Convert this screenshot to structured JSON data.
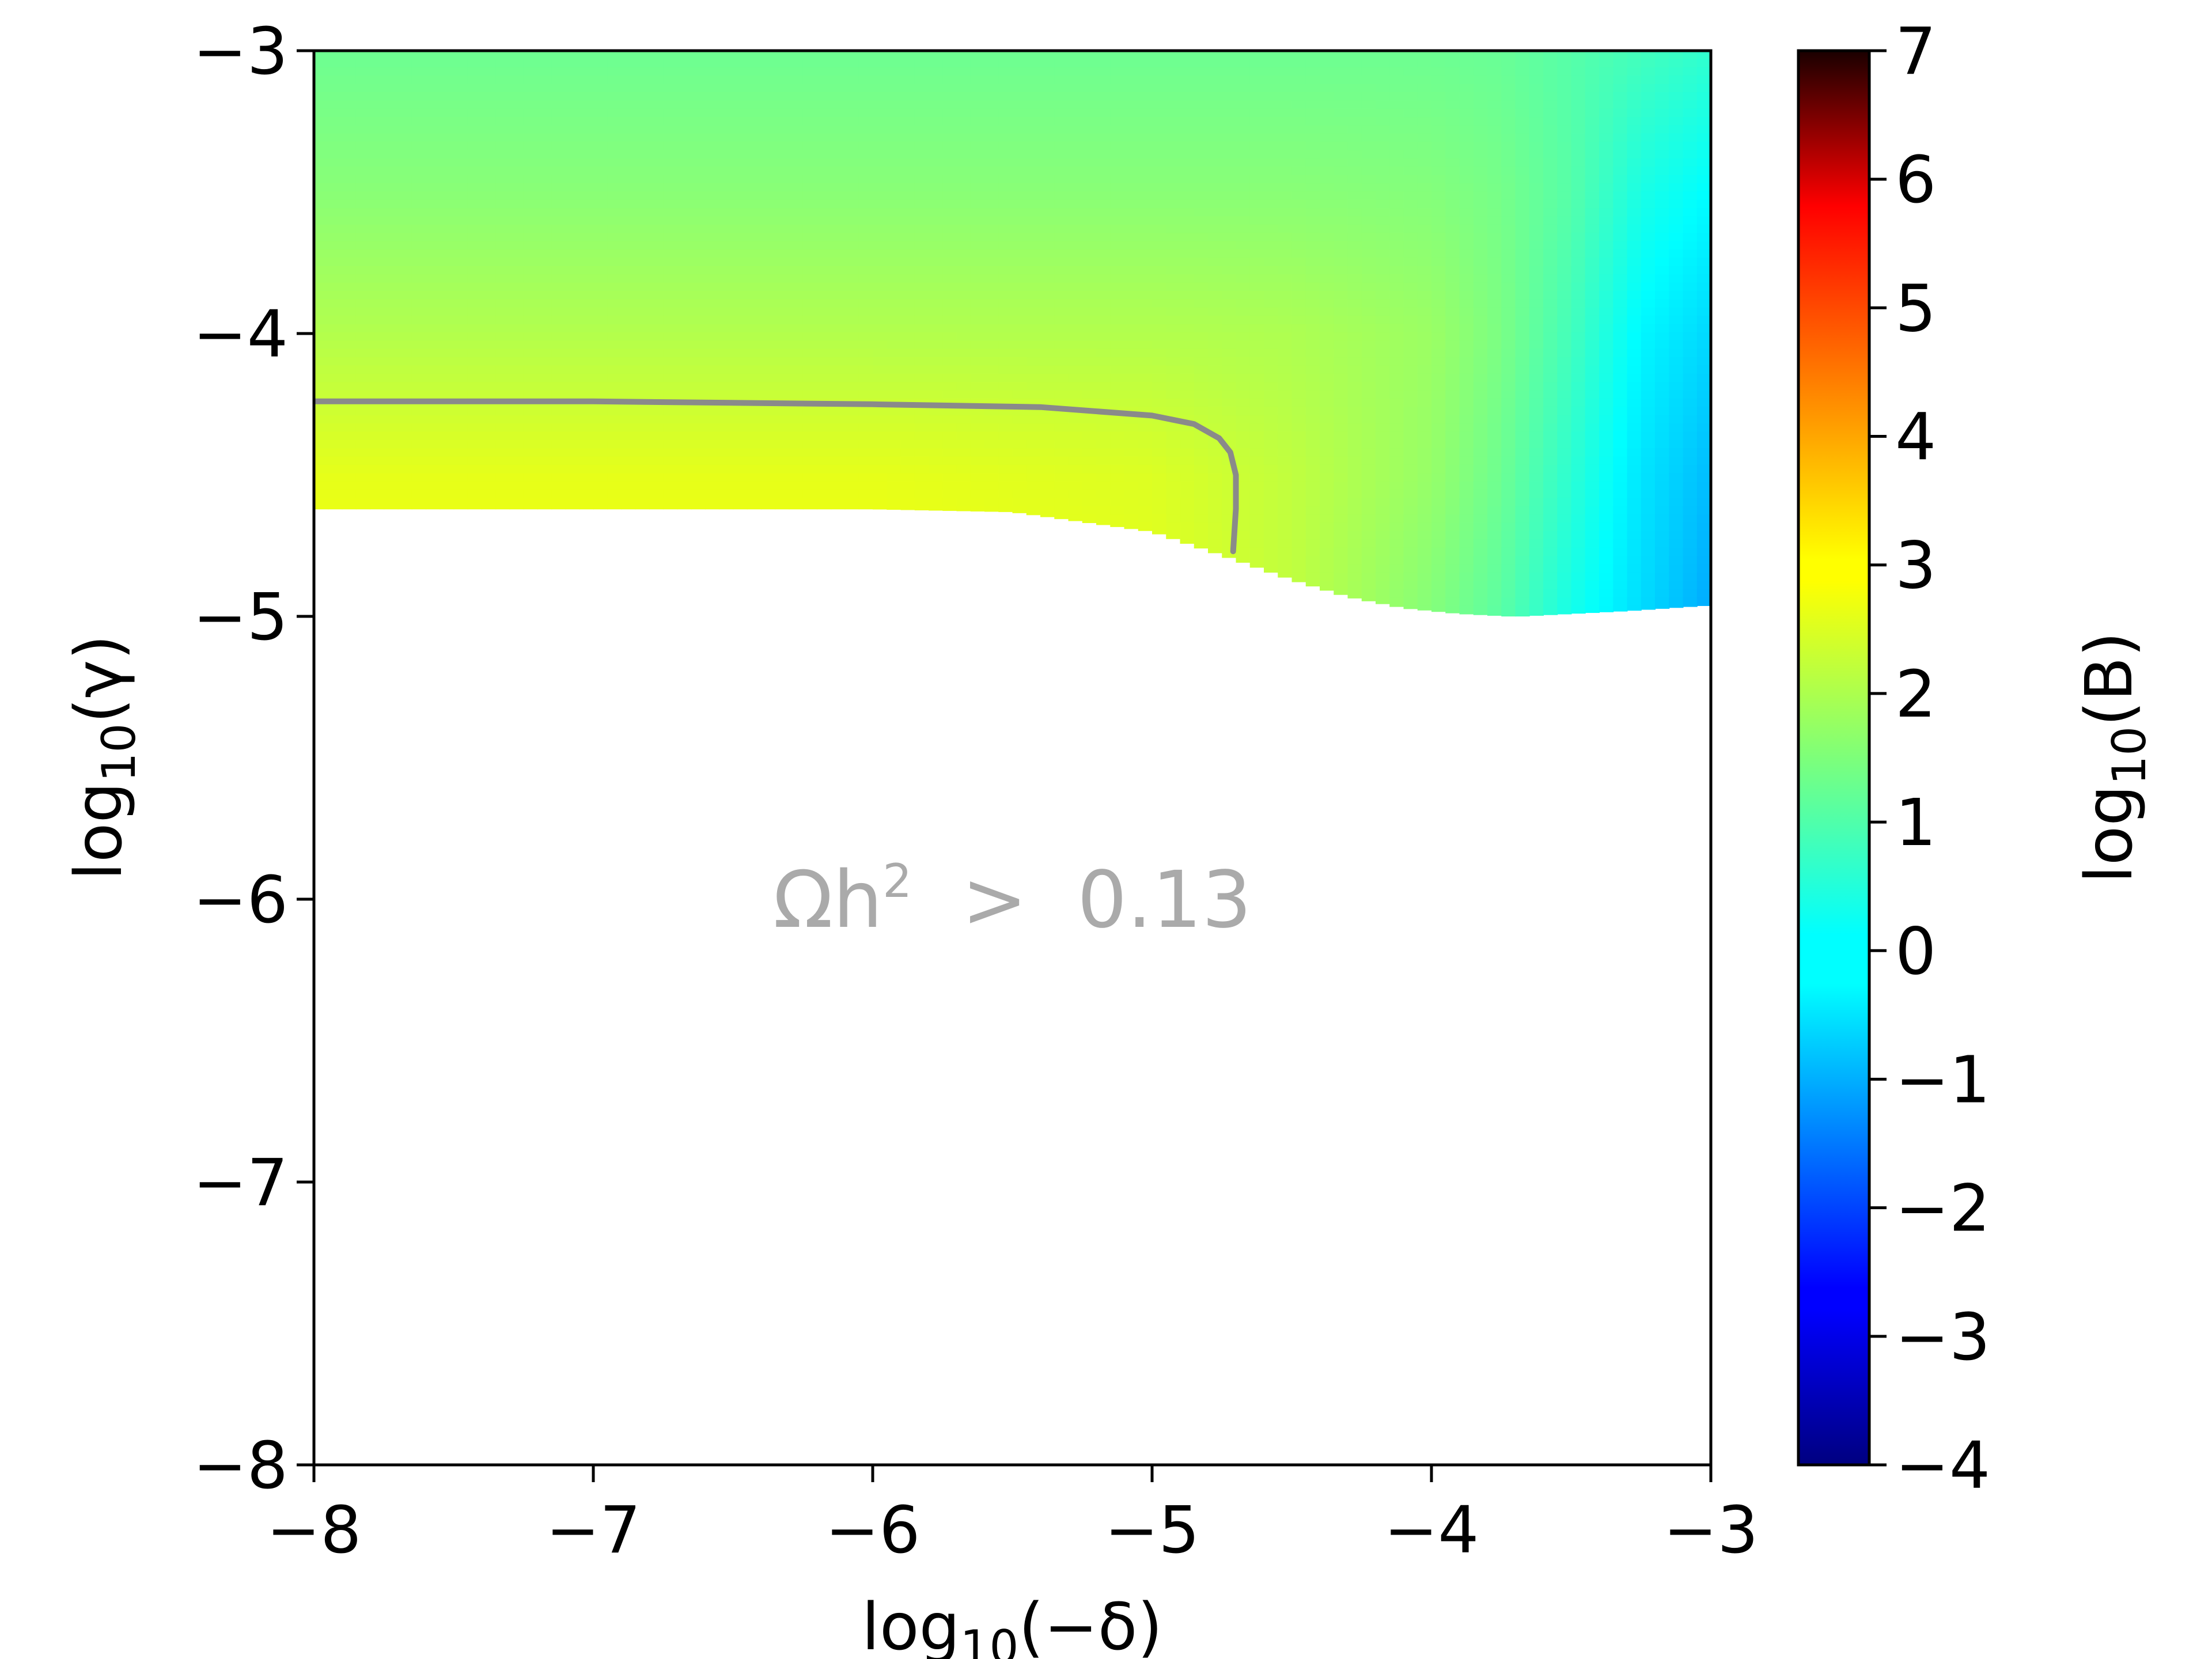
{
  "chart_data": {
    "type": "heatmap",
    "title": "",
    "xlabel": {
      "prefix": "log",
      "sub": "10",
      "suffix": "(−δ)"
    },
    "ylabel": {
      "prefix": "log",
      "sub": "10",
      "suffix": "(γ)"
    },
    "colorbar_label": {
      "prefix": "log",
      "sub": "10",
      "suffix": "(B)"
    },
    "xlim": [
      -8,
      -3
    ],
    "ylim": [
      -8,
      -3
    ],
    "clim": [
      -4,
      7
    ],
    "colormap": "jet",
    "grid": false,
    "x_ticks": [
      {
        "value": -8,
        "label": "−8"
      },
      {
        "value": -7,
        "label": "−7"
      },
      {
        "value": -6,
        "label": "−6"
      },
      {
        "value": -5,
        "label": "−5"
      },
      {
        "value": -4,
        "label": "−4"
      },
      {
        "value": -3,
        "label": "−3"
      }
    ],
    "y_ticks": [
      {
        "value": -8,
        "label": "−8"
      },
      {
        "value": -7,
        "label": "−7"
      },
      {
        "value": -6,
        "label": "−6"
      },
      {
        "value": -5,
        "label": "−5"
      },
      {
        "value": -4,
        "label": "−4"
      },
      {
        "value": -3,
        "label": "−3"
      }
    ],
    "colorbar_ticks": [
      {
        "value": -4,
        "label": "−4"
      },
      {
        "value": -3,
        "label": "−3"
      },
      {
        "value": -2,
        "label": "−2"
      },
      {
        "value": -1,
        "label": "−1"
      },
      {
        "value": 0,
        "label": "0"
      },
      {
        "value": 1,
        "label": "1"
      },
      {
        "value": 2,
        "label": "2"
      },
      {
        "value": 3,
        "label": "3"
      },
      {
        "value": 4,
        "label": "4"
      },
      {
        "value": 5,
        "label": "5"
      },
      {
        "value": 6,
        "label": "6"
      },
      {
        "value": 7,
        "label": "7"
      }
    ],
    "filled_region_lower_boundary": {
      "x": [
        -8,
        -7,
        -6,
        -5.5,
        -5,
        -4.7,
        -4.5,
        -4.3,
        -4.1,
        -3.9,
        -3.7,
        -3.5,
        -3.3,
        -3.0
      ],
      "y": [
        -4.62,
        -4.62,
        -4.62,
        -4.63,
        -4.7,
        -4.8,
        -4.87,
        -4.93,
        -4.97,
        -4.99,
        -5.0,
        -4.99,
        -4.98,
        -4.96
      ]
    },
    "color_field": {
      "x": [
        -8,
        -7,
        -6,
        -5,
        -4.5,
        -4,
        -3.75,
        -3.5,
        -3.25,
        -3
      ],
      "y": [
        -3,
        -3.5,
        -4,
        -4.5,
        -5
      ],
      "z": [
        [
          1.3,
          1.3,
          1.3,
          1.3,
          1.3,
          1.3,
          1.25,
          1.05,
          0.85,
          0.65
        ],
        [
          1.6,
          1.6,
          1.6,
          1.6,
          1.6,
          1.55,
          1.4,
          1.05,
          0.4,
          0.1
        ],
        [
          2.05,
          2.05,
          2.05,
          2.05,
          2.0,
          1.8,
          1.45,
          0.85,
          0.05,
          -0.3
        ],
        [
          2.6,
          2.6,
          2.6,
          2.5,
          2.2,
          1.75,
          1.3,
          0.6,
          -0.15,
          -0.6
        ],
        [
          2.8,
          2.8,
          2.8,
          2.6,
          2.2,
          1.55,
          1.1,
          0.35,
          -0.25,
          -0.8
        ]
      ]
    },
    "contour": {
      "label": "",
      "color": "#8a8a8a",
      "x": [
        -8,
        -7,
        -6,
        -5.4,
        -5.0,
        -4.85,
        -4.76,
        -4.72,
        -4.7,
        -4.7,
        -4.71
      ],
      "y": [
        -4.24,
        -4.24,
        -4.25,
        -4.26,
        -4.29,
        -4.32,
        -4.37,
        -4.42,
        -4.5,
        -4.62,
        -4.77
      ]
    },
    "annotation": {
      "base": "Ωh",
      "sup": "2",
      "rest": "  >  0.13",
      "x": -5.5,
      "y": -6.0,
      "color": "#aaaaaa"
    }
  }
}
